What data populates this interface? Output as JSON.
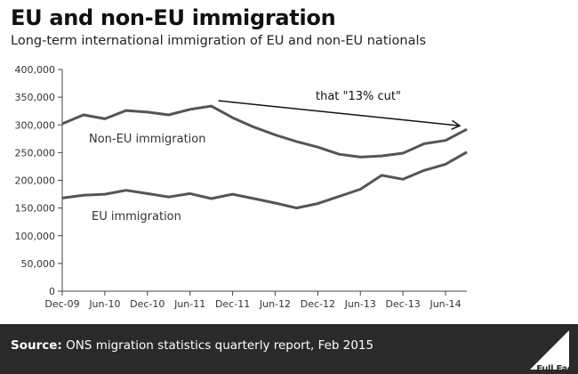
{
  "title": "EU and non-EU immigration",
  "subtitle": "Long-term international immigration of EU and non-EU nationals",
  "source_label": "Source:",
  "source_text": "ONS migration statistics quarterly report, Feb 2015",
  "logo_text": "Full Fact",
  "colors": {
    "line": "#555555",
    "axis": "#444444",
    "footer": "#2a2a2a"
  },
  "chart_data": {
    "type": "line",
    "x_tick_labels": [
      "Dec-09",
      "Jun-10",
      "Dec-10",
      "Jun-11",
      "Dec-11",
      "Jun-12",
      "Dec-12",
      "Jun-13",
      "Dec-13",
      "Jun-14"
    ],
    "x": [
      "Dec-09",
      "Mar-10",
      "Jun-10",
      "Sep-10",
      "Dec-10",
      "Mar-11",
      "Jun-11",
      "Sep-11",
      "Dec-11",
      "Mar-12",
      "Jun-12",
      "Sep-12",
      "Dec-12",
      "Mar-13",
      "Jun-13",
      "Sep-13",
      "Dec-13",
      "Mar-14",
      "Jun-14",
      "Sep-14"
    ],
    "series": [
      {
        "name": "Non-EU immigration",
        "label": "Non-EU immigration",
        "values": [
          302000,
          318000,
          311000,
          326000,
          323000,
          318000,
          328000,
          334000,
          313000,
          296000,
          282000,
          270000,
          260000,
          247000,
          242000,
          244000,
          249000,
          266000,
          272000,
          292000
        ]
      },
      {
        "name": "EU immigration",
        "label": "EU immigration",
        "values": [
          168000,
          173000,
          175000,
          182000,
          176000,
          170000,
          176000,
          167000,
          175000,
          167000,
          159000,
          150000,
          158000,
          171000,
          184000,
          209000,
          202000,
          218000,
          229000,
          251000
        ]
      }
    ],
    "yticks": [
      0,
      50000,
      100000,
      150000,
      200000,
      250000,
      300000,
      350000,
      400000
    ],
    "ytick_labels": [
      "0",
      "50,000",
      "100,000",
      "150,000",
      "200,000",
      "250,000",
      "300,000",
      "350,000",
      "400,000"
    ],
    "ylim": [
      0,
      400000
    ],
    "grid": false,
    "annotation": {
      "text": "that \"13% cut\"",
      "from": [
        "Sep-11",
        334000
      ],
      "to": [
        "Sep-14",
        292000
      ]
    }
  }
}
